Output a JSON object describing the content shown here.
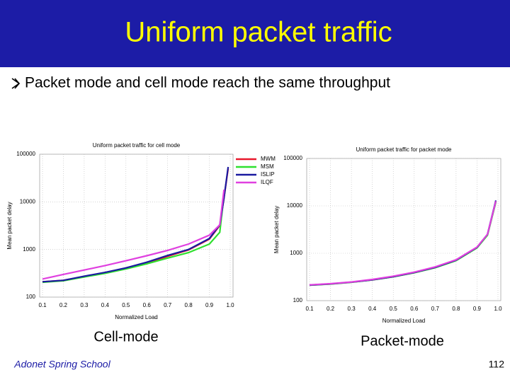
{
  "slide": {
    "title": "Uniform packet traffic",
    "bullet": "Packet mode and cell mode reach the same throughput",
    "captions": [
      "Cell-mode",
      "Packet-mode"
    ],
    "footer": "Adonet Spring School",
    "page_number": 112
  },
  "chart_data": [
    {
      "type": "line",
      "title": "Uniform packet traffic for cell mode",
      "x_label": "Normalized Load",
      "y_label": "Mean packet delay",
      "x": [
        0.1,
        0.2,
        0.3,
        0.4,
        0.5,
        0.6,
        0.7,
        0.8,
        0.9,
        0.95,
        0.97,
        0.99
      ],
      "series": [
        {
          "name": "MWM",
          "color": "#e8182c",
          "values": [
            210,
            225,
            270,
            320,
            400,
            520,
            720,
            980,
            1650,
            3200,
            12000,
            50000
          ]
        },
        {
          "name": "MSM",
          "color": "#2ee02e",
          "values": [
            205,
            220,
            265,
            315,
            390,
            500,
            660,
            860,
            1300,
            2300,
            14000,
            null
          ]
        },
        {
          "name": "ISLIP",
          "color": "#1a1aa0",
          "values": [
            210,
            225,
            275,
            330,
            410,
            540,
            750,
            1000,
            1700,
            3300,
            12000,
            54000
          ]
        },
        {
          "name": "ILQF",
          "color": "#e040e0",
          "values": [
            240,
            300,
            370,
            460,
            580,
            740,
            960,
            1300,
            2000,
            3300,
            18000,
            null
          ]
        }
      ],
      "xlim": [
        0.1,
        1.0
      ],
      "xticks": [
        0.1,
        0.2,
        0.3,
        0.4,
        0.5,
        0.6,
        0.7,
        0.8,
        0.9,
        {
          "value": 1,
          "label": "1.0"
        }
      ],
      "ylim": [
        100,
        100000
      ],
      "yticks": [
        100,
        1000,
        10000,
        100000
      ],
      "log_y": true,
      "grid": true,
      "legend": "right"
    },
    {
      "type": "line",
      "title": "Uniform packet traffic for packet mode",
      "x_label": "Normalized Load",
      "y_label": "Mean packet delay",
      "x": [
        0.1,
        0.2,
        0.3,
        0.4,
        0.5,
        0.6,
        0.7,
        0.8,
        0.9,
        0.95,
        0.99
      ],
      "series": [
        {
          "color": "#e8182c",
          "values": [
            213,
            225,
            245,
            275,
            320,
            390,
            500,
            710,
            1320,
            2450,
            12300
          ]
        },
        {
          "color": "#2ee02e",
          "values": [
            212,
            224,
            244,
            274,
            318,
            388,
            495,
            700,
            1300,
            2400,
            12000
          ]
        },
        {
          "color": "#1a1aa0",
          "values": [
            213,
            226,
            246,
            276,
            322,
            392,
            505,
            715,
            1330,
            2500,
            13000
          ]
        },
        {
          "color": "#e040e0",
          "values": [
            215,
            228,
            248,
            280,
            328,
            400,
            515,
            730,
            1350,
            2500,
            12500
          ]
        }
      ],
      "xlim": [
        0.1,
        1.0
      ],
      "xticks": [
        0.1,
        0.2,
        0.3,
        0.4,
        0.5,
        0.6,
        0.7,
        0.8,
        0.9,
        {
          "value": 1,
          "label": "1.0"
        }
      ],
      "ylim": [
        100,
        100000
      ],
      "yticks": [
        100,
        1000,
        10000,
        100000
      ],
      "log_y": true,
      "grid": true
    }
  ]
}
